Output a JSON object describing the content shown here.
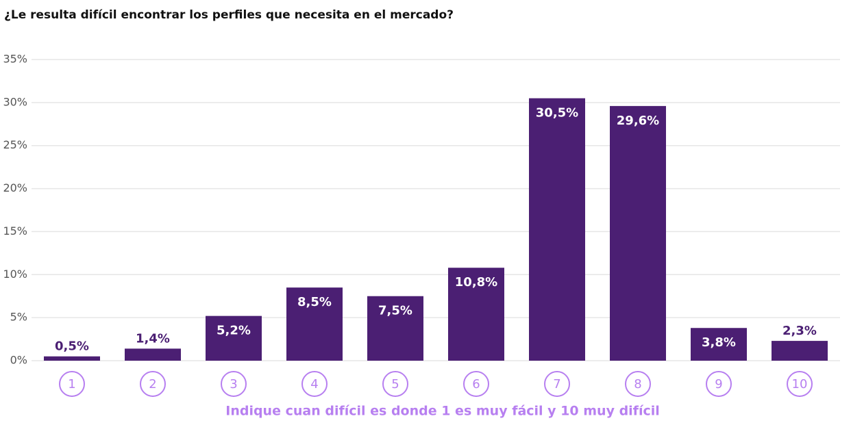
{
  "chart_data": {
    "type": "bar",
    "title": "¿Le resulta difícil encontrar los perfiles que necesita en el mercado?",
    "x_label": "Indique cuan difícil es donde 1 es muy fácil y 10 muy difícil",
    "categories": [
      "1",
      "2",
      "3",
      "4",
      "5",
      "6",
      "7",
      "8",
      "9",
      "10"
    ],
    "values": [
      0.5,
      1.4,
      5.2,
      8.5,
      7.5,
      10.8,
      30.5,
      29.6,
      3.8,
      2.3
    ],
    "value_labels": [
      "0,5%",
      "1,4%",
      "5,2%",
      "8,5%",
      "7,5%",
      "10,8%",
      "30,5%",
      "29,6%",
      "3,8%",
      "2,3%"
    ],
    "color": "#4b1f73",
    "ylim": [
      0,
      35
    ],
    "yticks": [
      {
        "value": 0,
        "label": "0%"
      },
      {
        "value": 5,
        "label": "5%"
      },
      {
        "value": 10,
        "label": "10%"
      },
      {
        "value": 15,
        "label": "15%"
      },
      {
        "value": 20,
        "label": "20%"
      },
      {
        "value": 25,
        "label": "25%"
      },
      {
        "value": 30,
        "label": "30%"
      },
      {
        "value": 35,
        "label": "35%"
      }
    ],
    "grid": true
  }
}
